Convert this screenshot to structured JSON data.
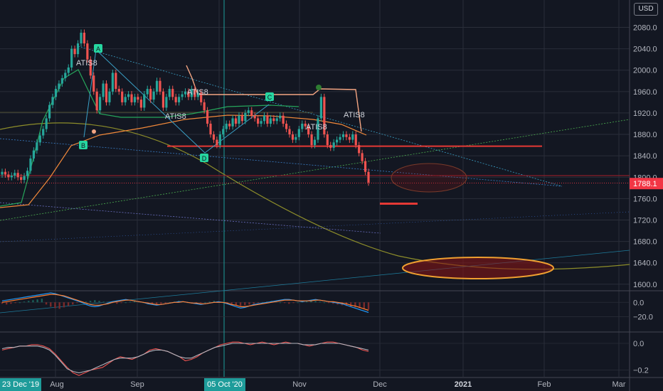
{
  "currency": "USD",
  "colors": {
    "background": "#131722",
    "grid": "#2a2e39",
    "up": "#26a69a",
    "down": "#ef5350",
    "price_label": "#f23645",
    "marker": "#26d6a0",
    "resistance": "#e53935"
  },
  "chart_data": [
    {
      "type": "candlestick",
      "title": "",
      "ylim": [
        1580,
        2100
      ],
      "y_ticks": [
        "2080.0",
        "2040.0",
        "2000.0",
        "1960.0",
        "1920.0",
        "1880.0",
        "1840.0",
        "1800.0",
        "1760.0",
        "1720.0",
        "1680.0",
        "1640.0",
        "1600.0"
      ],
      "y_tick_values": [
        2080,
        2040,
        2000,
        1960,
        1920,
        1880,
        1840,
        1800,
        1760,
        1720,
        1680,
        1640,
        1600
      ],
      "x_ticks": [
        "Aug",
        "Sep",
        "Nov",
        "Dec",
        "2021",
        "Feb",
        "Mar"
      ],
      "x_highlight": [
        "23 Dec '19",
        "05 Oct '20"
      ],
      "last_price": "1788.1",
      "last_price_value": 1788.1,
      "horizontal_levels": [
        1858,
        1803,
        1789
      ],
      "annotations": [
        "ATIS8",
        "ATIS8",
        "ATIS8",
        "ATIS8",
        "ATIS8"
      ],
      "pattern_points": [
        "A",
        "B",
        "C",
        "D"
      ],
      "closes": [
        1810,
        1805,
        1800,
        1803,
        1808,
        1800,
        1795,
        1802,
        1812,
        1835,
        1850,
        1865,
        1878,
        1890,
        1910,
        1935,
        1950,
        1965,
        1975,
        1985,
        1995,
        2005,
        2040,
        2030,
        2050,
        2070,
        2050,
        2020,
        1990,
        1960,
        1925,
        1950,
        1975,
        1940,
        1960,
        1995,
        1965,
        1960,
        1940,
        1950,
        1955,
        1940,
        1950,
        1945,
        1930,
        1955,
        1965,
        1945,
        1960,
        1980,
        1960,
        1930,
        1950,
        1965,
        1950,
        1940,
        1950,
        1955,
        1960,
        1950,
        1965,
        1950,
        1958,
        1940,
        1925,
        1900,
        1880,
        1870,
        1860,
        1880,
        1890,
        1900,
        1895,
        1910,
        1900,
        1915,
        1905,
        1920,
        1925,
        1915,
        1910,
        1900,
        1905,
        1915,
        1900,
        1910,
        1905,
        1910,
        1915,
        1900,
        1890,
        1880,
        1870,
        1875,
        1890,
        1900,
        1895,
        1880,
        1860,
        1870,
        1910,
        1950,
        1880,
        1860,
        1855,
        1865,
        1870,
        1875,
        1880,
        1875,
        1870,
        1880,
        1860,
        1845,
        1830,
        1810,
        1790
      ]
    },
    {
      "type": "line",
      "title": "",
      "ylim": [
        -40,
        15
      ],
      "y_ticks": [
        "0.0",
        "−20.0"
      ],
      "y_tick_values": [
        0,
        -20
      ],
      "series": [
        {
          "values": [
            2,
            3,
            4,
            5,
            6,
            7,
            8,
            9,
            10,
            11,
            12,
            13,
            12,
            10,
            8,
            6,
            4,
            2,
            0,
            -3,
            -5,
            -6,
            -5,
            -3,
            -1,
            1,
            2,
            3,
            4,
            3,
            2,
            1,
            0,
            -2,
            -3,
            -4,
            -3,
            -2,
            -1,
            0,
            1,
            1,
            0,
            -1,
            -2,
            -3,
            -2,
            -1,
            0,
            1,
            0,
            -2,
            -4,
            -6,
            -8,
            -7,
            -5,
            -3,
            -2,
            -1,
            0,
            1,
            2,
            3,
            4,
            4,
            3,
            2,
            1,
            2,
            3,
            4,
            3,
            2,
            1,
            0,
            -1,
            -2,
            -4,
            -6,
            -8,
            -10,
            -12,
            -14
          ]
        },
        {
          "values": [
            0,
            1,
            2,
            3,
            4,
            5,
            6,
            7,
            8,
            9,
            10,
            11,
            11,
            10,
            9,
            7,
            5,
            3,
            1,
            -1,
            -3,
            -4,
            -4,
            -3,
            -2,
            0,
            1,
            2,
            3,
            3,
            2,
            1,
            0,
            -1,
            -2,
            -3,
            -3,
            -2,
            -1,
            0,
            0,
            1,
            0,
            -1,
            -1,
            -2,
            -2,
            -1,
            0,
            0,
            0,
            -1,
            -3,
            -4,
            -6,
            -6,
            -5,
            -4,
            -3,
            -2,
            -1,
            0,
            1,
            2,
            3,
            3,
            3,
            2,
            2,
            2,
            2,
            3,
            3,
            2,
            1,
            1,
            0,
            -1,
            -2,
            -4,
            -5,
            -7,
            -9,
            -11
          ]
        }
      ],
      "histogram": [
        -2,
        -3,
        -2,
        -1,
        0,
        1,
        2,
        3,
        4,
        5,
        -3,
        -6,
        -8,
        -9,
        -7,
        -5,
        -3,
        -1,
        0,
        1,
        2,
        3,
        2,
        1,
        0,
        -1,
        -2,
        -1,
        0,
        1,
        2,
        1,
        0,
        -1,
        -2,
        -3,
        -2,
        -1,
        0,
        1,
        2,
        1,
        0,
        -1,
        -2,
        -1,
        0,
        1,
        2,
        1,
        0,
        -1,
        -3,
        -4,
        -5,
        -4,
        -3,
        -2,
        -1,
        0,
        1,
        2,
        1,
        0,
        -1,
        -2,
        -1,
        0,
        1,
        2,
        3,
        2,
        1,
        0,
        -1,
        -2,
        -3,
        -4,
        -5,
        -6,
        -7,
        -8,
        -9,
        -10
      ]
    },
    {
      "type": "line",
      "title": "",
      "ylim": [
        -0.25,
        0.08
      ],
      "y_ticks": [
        "0.0",
        "−0.2"
      ],
      "y_tick_values": [
        0,
        -0.2
      ],
      "series": [
        {
          "values": [
            -0.05,
            -0.04,
            -0.03,
            -0.02,
            -0.02,
            -0.01,
            -0.01,
            -0.02,
            -0.04,
            -0.08,
            -0.13,
            -0.18,
            -0.22,
            -0.24,
            -0.22,
            -0.2,
            -0.19,
            -0.18,
            -0.15,
            -0.12,
            -0.1,
            -0.11,
            -0.12,
            -0.1,
            -0.08,
            -0.05,
            -0.04,
            -0.05,
            -0.06,
            -0.08,
            -0.1,
            -0.13,
            -0.12,
            -0.1,
            -0.07,
            -0.05,
            -0.03,
            -0.01,
            0.0,
            0.01,
            0.01,
            0.0,
            -0.01,
            0.0,
            0.01,
            0.0,
            -0.01,
            0.0,
            0.01,
            0.0,
            0.0,
            -0.01,
            -0.02,
            -0.01,
            0.0,
            0.01,
            0.01,
            0.0,
            -0.01,
            -0.02,
            -0.03,
            -0.05,
            -0.06
          ]
        },
        {
          "values": [
            -0.04,
            -0.03,
            -0.03,
            -0.02,
            -0.02,
            -0.02,
            -0.02,
            -0.03,
            -0.05,
            -0.09,
            -0.14,
            -0.19,
            -0.21,
            -0.22,
            -0.21,
            -0.2,
            -0.18,
            -0.16,
            -0.14,
            -0.12,
            -0.11,
            -0.11,
            -0.11,
            -0.1,
            -0.08,
            -0.06,
            -0.05,
            -0.05,
            -0.06,
            -0.08,
            -0.1,
            -0.11,
            -0.11,
            -0.09,
            -0.07,
            -0.05,
            -0.03,
            -0.02,
            -0.01,
            0.0,
            0.0,
            0.0,
            0.0,
            0.0,
            0.0,
            0.0,
            0.0,
            0.0,
            0.0,
            0.0,
            0.0,
            -0.01,
            -0.01,
            -0.01,
            0.0,
            0.0,
            0.0,
            0.0,
            -0.01,
            -0.02,
            -0.03,
            -0.04,
            -0.05
          ]
        }
      ]
    }
  ]
}
